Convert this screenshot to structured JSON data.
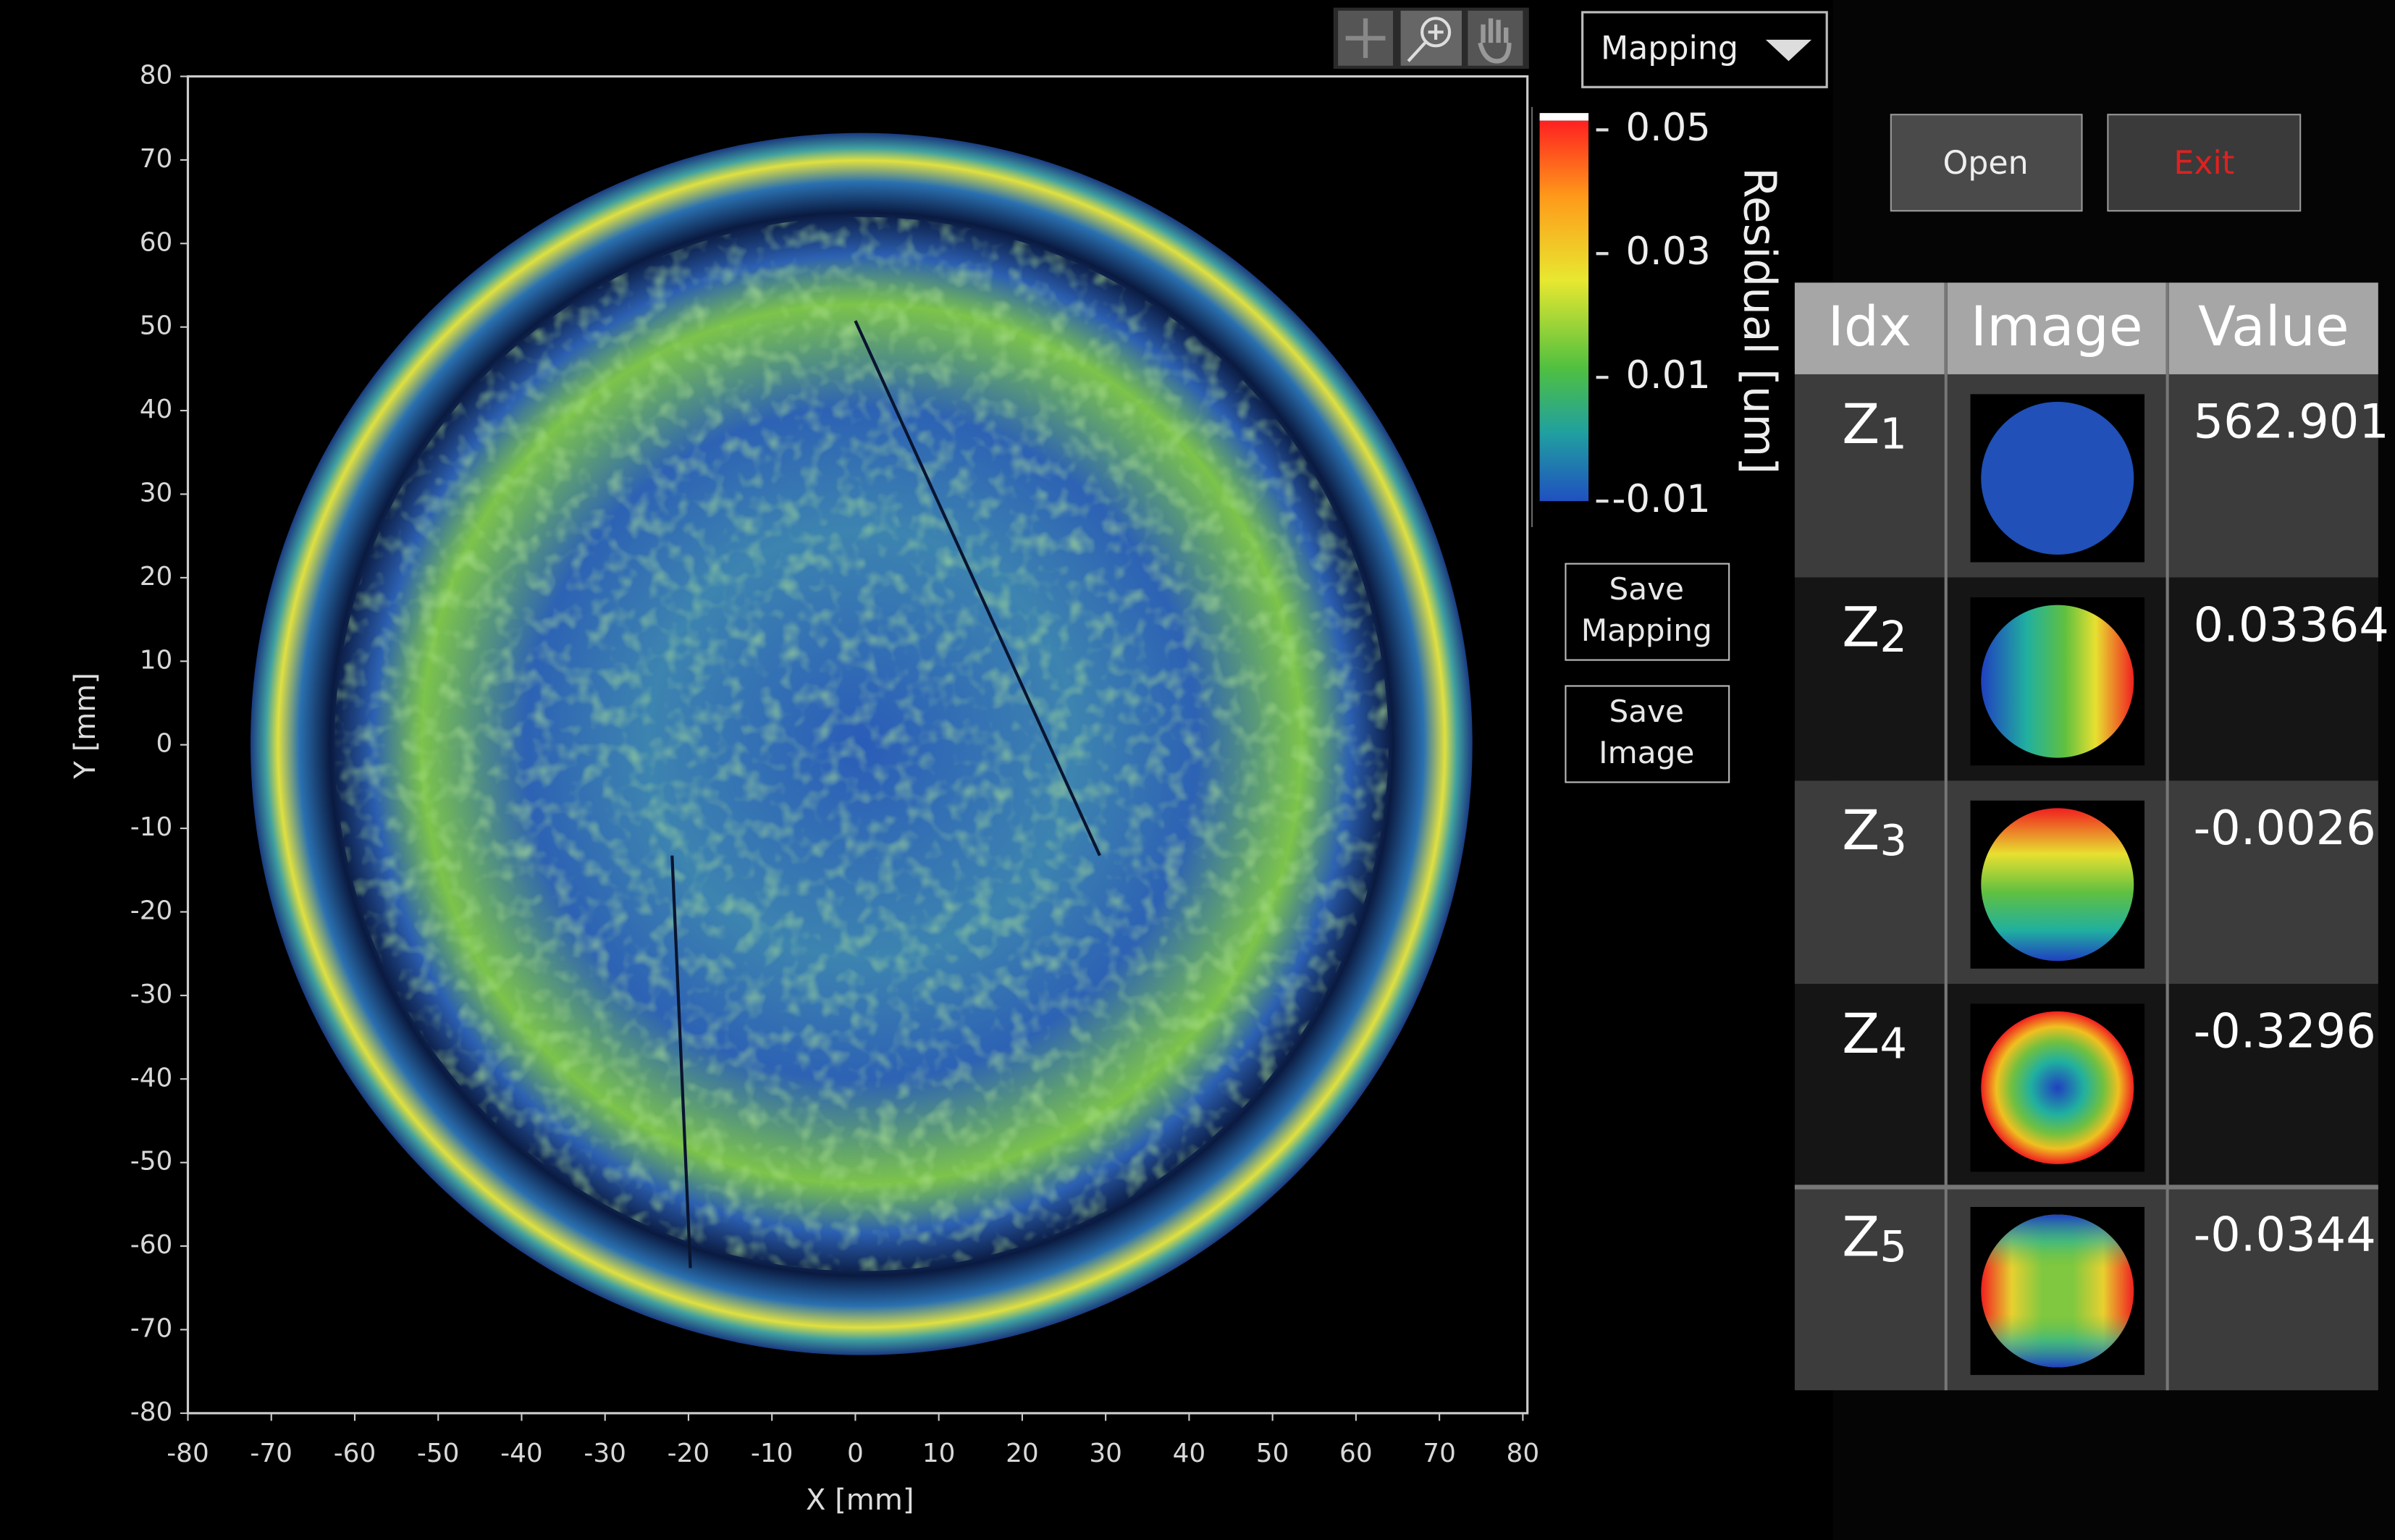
{
  "toolbar": {
    "view_mode": "Mapping"
  },
  "buttons": {
    "open": "Open",
    "exit": "Exit",
    "save_mapping": [
      "Save",
      "Mapping"
    ],
    "save_image": [
      "Save",
      "Image"
    ]
  },
  "chart_data": {
    "type": "heatmap",
    "xlabel": "X [mm]",
    "ylabel": "Y [mm]",
    "xlim": [
      -80,
      80
    ],
    "ylim": [
      -80,
      80
    ],
    "xticks": [
      -80,
      -70,
      -60,
      -50,
      -40,
      -30,
      -20,
      -10,
      0,
      10,
      20,
      30,
      40,
      50,
      60,
      70,
      80
    ],
    "yticks": [
      -80,
      -70,
      -60,
      -50,
      -40,
      -30,
      -20,
      -10,
      0,
      10,
      20,
      30,
      40,
      50,
      60,
      70,
      80
    ],
    "colorbar": {
      "label": "Residual [um]",
      "lim": [
        -0.01,
        0.05
      ],
      "ticks": [
        -0.01,
        0.01,
        0.03,
        0.05
      ]
    }
  },
  "table": {
    "columns": [
      "Idx",
      "Image",
      "Value"
    ],
    "rows": [
      {
        "name": "Z",
        "index": 1,
        "value": 562.901
      },
      {
        "name": "Z",
        "index": 2,
        "value": 0.03364
      },
      {
        "name": "Z",
        "index": 3,
        "value": -0.0026
      },
      {
        "name": "Z",
        "index": 4,
        "value": -0.3296
      },
      {
        "name": "Z",
        "index": 5,
        "value": -0.0344
      }
    ]
  }
}
